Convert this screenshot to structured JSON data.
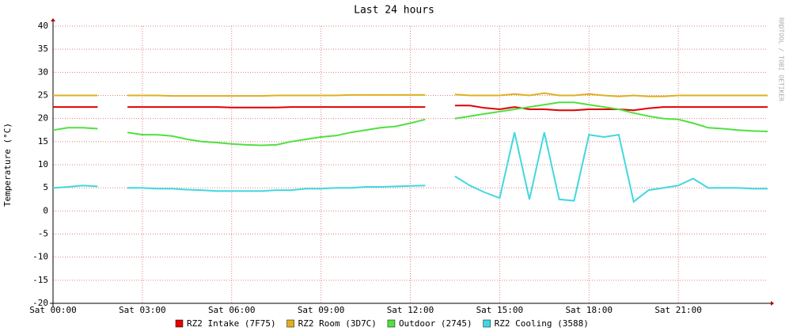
{
  "chart_data": {
    "type": "line",
    "title": "Last 24 hours",
    "y_label": "Temperature (°C)",
    "watermark": "RRDTOOL / TOBI OETIKER",
    "x": [
      0,
      0.5,
      1,
      1.5,
      2,
      2.5,
      3,
      3.5,
      4,
      4.5,
      5,
      5.5,
      6,
      6.5,
      7,
      7.5,
      8,
      8.5,
      9,
      9.5,
      10,
      10.5,
      11,
      11.5,
      12,
      12.5,
      13,
      13.5,
      14,
      14.5,
      15,
      15.5,
      16,
      16.5,
      17,
      17.5,
      18,
      18.5,
      19,
      19.5,
      20,
      20.5,
      21,
      21.5,
      22,
      22.5,
      23,
      23.5,
      24
    ],
    "xlim": [
      0,
      24
    ],
    "xticks": [
      {
        "value": 0,
        "label": "Sat 00:00"
      },
      {
        "value": 3,
        "label": "Sat 03:00"
      },
      {
        "value": 6,
        "label": "Sat 06:00"
      },
      {
        "value": 9,
        "label": "Sat 09:00"
      },
      {
        "value": 12,
        "label": "Sat 12:00"
      },
      {
        "value": 15,
        "label": "Sat 15:00"
      },
      {
        "value": 18,
        "label": "Sat 18:00"
      },
      {
        "value": 21,
        "label": "Sat 21:00"
      }
    ],
    "ylim": [
      -20,
      40
    ],
    "yticks": [
      -20,
      -15,
      -10,
      -5,
      0,
      5,
      10,
      15,
      20,
      25,
      30,
      35,
      40
    ],
    "grid": true,
    "series": [
      {
        "name": "RZ2 Intake (7F75)",
        "color": "#e00000",
        "values": [
          22.5,
          22.5,
          22.5,
          22.5,
          null,
          22.5,
          22.5,
          22.5,
          22.5,
          22.5,
          22.5,
          22.5,
          22.4,
          22.4,
          22.4,
          22.4,
          22.5,
          22.5,
          22.5,
          22.5,
          22.5,
          22.5,
          22.5,
          22.5,
          22.5,
          22.5,
          null,
          22.8,
          22.8,
          22.3,
          22,
          22.5,
          22,
          22,
          21.8,
          21.8,
          22,
          22,
          22,
          21.8,
          22.2,
          22.5,
          22.5,
          22.5,
          22.5,
          22.5,
          22.5,
          22.5,
          22.5
        ]
      },
      {
        "name": "RZ2 Room (3D7C)",
        "color": "#e0b020",
        "values": [
          25,
          25,
          25,
          25,
          null,
          25,
          25,
          25,
          24.9,
          24.9,
          24.9,
          24.9,
          24.9,
          24.9,
          24.9,
          25,
          25,
          25,
          25,
          25,
          25.1,
          25.1,
          25.1,
          25.1,
          25.1,
          25.1,
          null,
          25.2,
          25,
          25,
          25,
          25.3,
          25,
          25.5,
          25,
          25,
          25.3,
          25,
          24.8,
          25,
          24.8,
          24.8,
          25,
          25,
          25,
          25,
          25,
          25,
          25
        ]
      },
      {
        "name": "Outdoor (2745)",
        "color": "#50e040",
        "values": [
          17.5,
          18,
          18,
          17.8,
          null,
          17,
          16.5,
          16.5,
          16.2,
          15.5,
          15,
          14.8,
          14.5,
          14.3,
          14.2,
          14.3,
          15,
          15.5,
          16,
          16.3,
          17,
          17.5,
          18,
          18.3,
          19,
          19.8,
          null,
          20,
          20.5,
          21,
          21.5,
          22,
          22.5,
          23,
          23.5,
          23.5,
          23,
          22.5,
          22,
          21.2,
          20.5,
          20,
          19.8,
          19,
          18,
          17.8,
          17.5,
          17.3,
          17.2
        ]
      },
      {
        "name": "RZ2 Cooling (3588)",
        "color": "#40d8e0",
        "values": [
          5,
          5.2,
          5.5,
          5.3,
          null,
          5,
          5,
          4.8,
          4.8,
          4.6,
          4.5,
          4.3,
          4.3,
          4.3,
          4.3,
          4.5,
          4.5,
          4.8,
          4.8,
          5,
          5,
          5.2,
          5.2,
          5.3,
          5.4,
          5.5,
          null,
          7.5,
          5.5,
          4,
          2.8,
          17,
          2.5,
          17,
          2.5,
          2.2,
          16.5,
          16,
          16.5,
          2,
          4.5,
          5,
          5.5,
          7,
          5,
          5,
          5,
          4.8,
          4.8
        ]
      }
    ]
  }
}
